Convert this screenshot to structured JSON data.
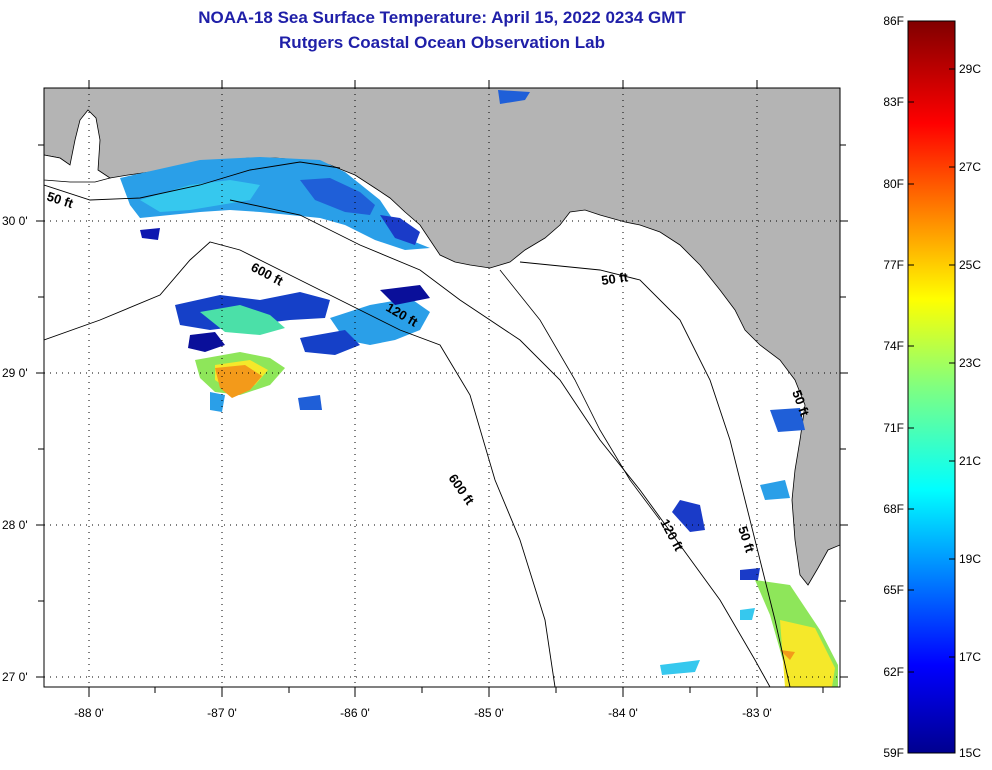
{
  "title": "NOAA-18 Sea Surface Temperature:  April 15, 2022 0234 GMT",
  "subtitle": "Rutgers Coastal Ocean Observation Lab",
  "map": {
    "lat_ticks": [
      "30 0'",
      "29 0'",
      "28 0'",
      "27 0'"
    ],
    "lon_ticks": [
      "-88 0'",
      "-87 0'",
      "-86 0'",
      "-85 0'",
      "-84 0'",
      "-83 0'"
    ],
    "contours": [
      "50 ft",
      "600 ft",
      "120 ft",
      "50 ft",
      "600 ft",
      "120 ft",
      "50 ft",
      "50 ft"
    ]
  },
  "colorbar": {
    "f_labels": [
      "86F",
      "83F",
      "80F",
      "77F",
      "74F",
      "71F",
      "68F",
      "65F",
      "62F",
      "59F"
    ],
    "c_labels": [
      "29C",
      "27C",
      "25C",
      "23C",
      "21C",
      "19C",
      "17C",
      "15C"
    ],
    "colors": [
      "#00008f",
      "#0000ff",
      "#0080ff",
      "#00ffff",
      "#80ff80",
      "#ffff00",
      "#ff8000",
      "#ff0000",
      "#800000"
    ]
  }
}
